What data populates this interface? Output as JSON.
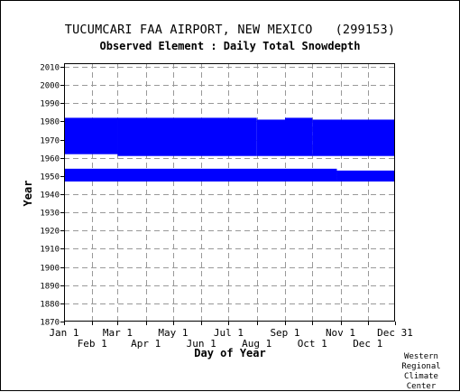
{
  "chart_data": {
    "type": "bar",
    "title": "TUCUMCARI FAA AIRPORT, NEW MEXICO   (299153)",
    "subtitle": "Observed Element : Daily Total Snowdepth",
    "xlabel": "Day of Year",
    "ylabel": "Year",
    "xlim": [
      1,
      365
    ],
    "ylim": [
      1870,
      2012
    ],
    "y_ticks": [
      1870,
      1880,
      1890,
      1900,
      1910,
      1920,
      1930,
      1940,
      1950,
      1960,
      1970,
      1980,
      1990,
      2000,
      2010
    ],
    "x_ticks_upper": [
      {
        "label": "Jan 1",
        "day": 1
      },
      {
        "label": "Mar 1",
        "day": 60
      },
      {
        "label": "May 1",
        "day": 121
      },
      {
        "label": "Jul 1",
        "day": 182
      },
      {
        "label": "Sep 1",
        "day": 244
      },
      {
        "label": "Nov 1",
        "day": 305
      },
      {
        "label": "Dec 31",
        "day": 365
      }
    ],
    "x_ticks_lower": [
      {
        "label": "Feb 1",
        "day": 32
      },
      {
        "label": "Apr 1",
        "day": 91
      },
      {
        "label": "Jun 1",
        "day": 152
      },
      {
        "label": "Aug 1",
        "day": 213
      },
      {
        "label": "Oct 1",
        "day": 274
      },
      {
        "label": "Dec 1",
        "day": 335
      }
    ],
    "grid": true,
    "series_color": "#0000ff",
    "data_coverage": [
      {
        "start_day": 1,
        "end_day": 59,
        "year_start": 1962,
        "year_end": 1982
      },
      {
        "start_day": 60,
        "end_day": 212,
        "year_start": 1961,
        "year_end": 1982
      },
      {
        "start_day": 213,
        "end_day": 243,
        "year_start": 1961,
        "year_end": 1981
      },
      {
        "start_day": 244,
        "end_day": 273,
        "year_start": 1961,
        "year_end": 1982
      },
      {
        "start_day": 274,
        "end_day": 365,
        "year_start": 1961,
        "year_end": 1981
      },
      {
        "start_day": 1,
        "end_day": 300,
        "year_start": 1947,
        "year_end": 1954
      },
      {
        "start_day": 301,
        "end_day": 365,
        "year_start": 1947,
        "year_end": 1953
      }
    ]
  },
  "credit": {
    "line1": "Western",
    "line2": "Regional",
    "line3": "Climate",
    "line4": "Center"
  }
}
